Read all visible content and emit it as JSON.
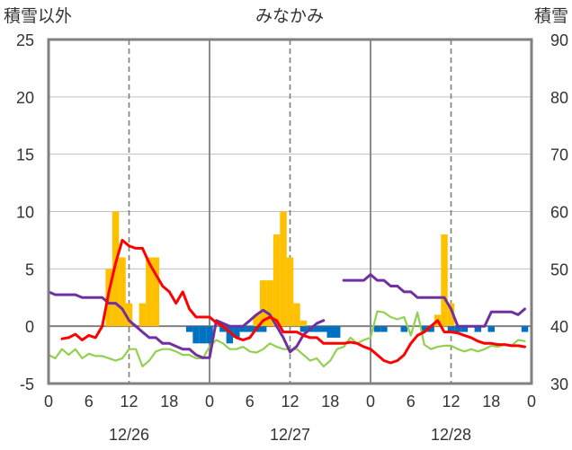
{
  "chart_data": {
    "type": "bar+line",
    "title": "みなかみ",
    "left_axis_label": "積雪以外",
    "right_axis_label": "積雪",
    "left_ylim": [
      -5,
      25
    ],
    "left_yticks": [
      -5,
      0,
      5,
      10,
      15,
      20,
      25
    ],
    "right_ylim": [
      30,
      90
    ],
    "right_yticks": [
      30,
      40,
      50,
      60,
      70,
      80,
      90
    ],
    "x_range_hours": [
      0,
      72
    ],
    "x_tick_labels": [
      "0",
      "6",
      "12",
      "18",
      "0",
      "6",
      "12",
      "18",
      "0",
      "6",
      "12",
      "18",
      "0"
    ],
    "date_labels": [
      "12/26",
      "12/27",
      "12/28"
    ],
    "grid": "horizontal lines; solid at day boundaries, dashed at noon",
    "colors": {
      "precip_bar": "#FFC000",
      "minus_bar": "#0070C0",
      "temperature": "#FF0000",
      "green_line": "#92D050",
      "snow_depth": "#7030A0"
    },
    "precip_bars": [
      [
        9,
        5
      ],
      [
        10,
        10
      ],
      [
        11,
        6
      ],
      [
        12,
        2
      ],
      [
        14,
        2
      ],
      [
        15,
        6
      ],
      [
        16,
        6
      ],
      [
        31,
        1
      ],
      [
        32,
        4
      ],
      [
        33,
        4
      ],
      [
        34,
        8
      ],
      [
        35,
        10
      ],
      [
        36,
        6
      ],
      [
        37,
        2
      ],
      [
        38,
        0.5
      ],
      [
        58,
        1
      ],
      [
        59,
        8
      ],
      [
        60,
        2
      ]
    ],
    "minus_bars": [
      [
        21,
        -0.5
      ],
      [
        22,
        -1.5
      ],
      [
        23,
        -1.5
      ],
      [
        24,
        -1.5
      ],
      [
        26,
        -0.5
      ],
      [
        27,
        -1.5
      ],
      [
        28,
        -1
      ],
      [
        29,
        -0.5
      ],
      [
        30,
        -0.5
      ],
      [
        31,
        -0.5
      ],
      [
        32,
        -0.5
      ],
      [
        38,
        -0.5
      ],
      [
        39,
        -0.5
      ],
      [
        40,
        -0.5
      ],
      [
        41,
        -0.5
      ],
      [
        42,
        -1
      ],
      [
        43,
        -1
      ],
      [
        49,
        -0.5
      ],
      [
        50,
        -0.5
      ],
      [
        53,
        -0.5
      ],
      [
        56,
        -0.5
      ],
      [
        57,
        -0.5
      ],
      [
        60,
        -0.5
      ],
      [
        61,
        -0.5
      ],
      [
        62,
        -0.5
      ],
      [
        64,
        -0.5
      ],
      [
        66,
        -0.5
      ],
      [
        71,
        -0.5
      ]
    ],
    "temperature": [
      [
        0,
        -1.2
      ],
      [
        2,
        -1.1
      ],
      [
        3,
        -1
      ],
      [
        4,
        -0.7
      ],
      [
        5,
        -1.2
      ],
      [
        6,
        -0.8
      ],
      [
        7,
        -1
      ],
      [
        8,
        0
      ],
      [
        9,
        3
      ],
      [
        10,
        5.5
      ],
      [
        11,
        7.5
      ],
      [
        12,
        7
      ],
      [
        13,
        6.8
      ],
      [
        14,
        6.8
      ],
      [
        15,
        5.5
      ],
      [
        16,
        4.5
      ],
      [
        17,
        3.5
      ],
      [
        18,
        3
      ],
      [
        19,
        2
      ],
      [
        20,
        3
      ],
      [
        21,
        1.5
      ],
      [
        22,
        0.8
      ],
      [
        23,
        0.8
      ],
      [
        24,
        0.8
      ],
      [
        25,
        0.3
      ],
      [
        26,
        0
      ],
      [
        27,
        -0.5
      ],
      [
        28,
        -1
      ],
      [
        29,
        -1.2
      ],
      [
        30,
        -1
      ],
      [
        31,
        -0.2
      ],
      [
        32,
        0.5
      ],
      [
        33,
        0.8
      ],
      [
        34,
        0.5
      ],
      [
        35,
        -0.5
      ],
      [
        36,
        -0.5
      ],
      [
        37,
        -0.5
      ],
      [
        38,
        -0.8
      ],
      [
        39,
        -1
      ],
      [
        40,
        -1
      ],
      [
        41,
        -1.5
      ],
      [
        42,
        -1.5
      ],
      [
        43,
        -1.5
      ],
      [
        44,
        -1.5
      ],
      [
        45,
        -1.4
      ],
      [
        46,
        -1.5
      ],
      [
        47,
        -1.8
      ],
      [
        48,
        -2
      ],
      [
        49,
        -2.5
      ],
      [
        50,
        -3
      ],
      [
        51,
        -3.2
      ],
      [
        52,
        -3
      ],
      [
        53,
        -2.5
      ],
      [
        54,
        -1.5
      ],
      [
        55,
        -0.8
      ],
      [
        56,
        -0.5
      ],
      [
        57,
        0
      ],
      [
        58,
        0.5
      ],
      [
        59,
        -0.5
      ],
      [
        60,
        -0.5
      ],
      [
        61,
        -0.6
      ],
      [
        62,
        -0.8
      ],
      [
        63,
        -1
      ],
      [
        64,
        -1.3
      ],
      [
        65,
        -1.5
      ],
      [
        66,
        -1.5
      ],
      [
        67,
        -1.6
      ],
      [
        68,
        -1.6
      ],
      [
        69,
        -1.7
      ],
      [
        70,
        -1.7
      ],
      [
        71,
        -1.8
      ]
    ],
    "green_line": [
      [
        0,
        -2.5
      ],
      [
        1,
        -2.8
      ],
      [
        2,
        -2
      ],
      [
        3,
        -2.5
      ],
      [
        4,
        -2
      ],
      [
        5,
        -2.8
      ],
      [
        6,
        -2.4
      ],
      [
        7,
        -2.6
      ],
      [
        8,
        -2.6
      ],
      [
        9,
        -2.8
      ],
      [
        10,
        -3
      ],
      [
        11,
        -2.8
      ],
      [
        12,
        -2
      ],
      [
        13,
        -2
      ],
      [
        14,
        -3.5
      ],
      [
        15,
        -3
      ],
      [
        16,
        -2.2
      ],
      [
        17,
        -2
      ],
      [
        18,
        -2
      ],
      [
        19,
        -2.2
      ],
      [
        20,
        -2.5
      ],
      [
        21,
        -2.5
      ],
      [
        22,
        -2.8
      ],
      [
        23,
        -2.8
      ],
      [
        24,
        -1.8
      ],
      [
        25,
        -1.2
      ],
      [
        26,
        -1.5
      ],
      [
        27,
        -2
      ],
      [
        28,
        -2
      ],
      [
        29,
        -1.8
      ],
      [
        30,
        -2.2
      ],
      [
        31,
        -2.3
      ],
      [
        32,
        -2
      ],
      [
        33,
        -1.5
      ],
      [
        34,
        -1.8
      ],
      [
        35,
        -2
      ],
      [
        36,
        -2
      ],
      [
        37,
        -2
      ],
      [
        38,
        -2.5
      ],
      [
        39,
        -3
      ],
      [
        40,
        -2.8
      ],
      [
        41,
        -3.5
      ],
      [
        42,
        -3
      ],
      [
        43,
        -2
      ],
      [
        44,
        -1.8
      ],
      [
        45,
        -1
      ],
      [
        46,
        -1.5
      ],
      [
        47,
        -1.2
      ],
      [
        48,
        -1
      ],
      [
        49,
        1.3
      ],
      [
        50,
        1.2
      ],
      [
        51,
        0.8
      ],
      [
        52,
        0.6
      ],
      [
        53,
        0.8
      ],
      [
        54,
        -0.8
      ],
      [
        55,
        1.2
      ],
      [
        56,
        -1.6
      ],
      [
        57,
        -2
      ],
      [
        58,
        -1.8
      ],
      [
        59,
        -1.7
      ],
      [
        60,
        -1.7
      ],
      [
        61,
        -2
      ],
      [
        62,
        -2.2
      ],
      [
        63,
        -2
      ],
      [
        64,
        -2.2
      ],
      [
        65,
        -2
      ],
      [
        66,
        -1.7
      ],
      [
        67,
        -1.8
      ],
      [
        68,
        -1.6
      ],
      [
        69,
        -1.7
      ],
      [
        70,
        -1.2
      ],
      [
        71,
        -1.3
      ]
    ],
    "snow_depth": [
      [
        0,
        46
      ],
      [
        1,
        45.5
      ],
      [
        2,
        45.5
      ],
      [
        3,
        45.5
      ],
      [
        4,
        45.5
      ],
      [
        5,
        45
      ],
      [
        6,
        45
      ],
      [
        7,
        45
      ],
      [
        8,
        45
      ],
      [
        9,
        44
      ],
      [
        10,
        44
      ],
      [
        11,
        43
      ],
      [
        12,
        41
      ],
      [
        13,
        40
      ],
      [
        14,
        39
      ],
      [
        15,
        38
      ],
      [
        16,
        38
      ],
      [
        17,
        37
      ],
      [
        18,
        37
      ],
      [
        19,
        36.5
      ],
      [
        20,
        36
      ],
      [
        21,
        36
      ],
      [
        22,
        35
      ],
      [
        23,
        34.5
      ],
      [
        24,
        34.5
      ],
      [
        25,
        41
      ],
      [
        26,
        40.5
      ],
      [
        27,
        40
      ],
      [
        28,
        40
      ],
      [
        29,
        40
      ],
      [
        30,
        41
      ],
      [
        31,
        42
      ],
      [
        32,
        42.8
      ],
      [
        33,
        42
      ],
      [
        34,
        40
      ],
      [
        35,
        38
      ],
      [
        36,
        35.5
      ],
      [
        37,
        36.5
      ],
      [
        38,
        38.5
      ],
      [
        39,
        39.5
      ],
      [
        40,
        40.5
      ],
      [
        41,
        41
      ],
      [
        44,
        48
      ],
      [
        45,
        48
      ],
      [
        46,
        48
      ],
      [
        47,
        48
      ],
      [
        48,
        49
      ],
      [
        49,
        48
      ],
      [
        50,
        48
      ],
      [
        51,
        47
      ],
      [
        52,
        47
      ],
      [
        53,
        46
      ],
      [
        54,
        46
      ],
      [
        55,
        45
      ],
      [
        56,
        45
      ],
      [
        57,
        45
      ],
      [
        58,
        45
      ],
      [
        59,
        45
      ],
      [
        60,
        43
      ],
      [
        61,
        40
      ],
      [
        62,
        40
      ],
      [
        63,
        40
      ],
      [
        64,
        40
      ],
      [
        65,
        40
      ],
      [
        66,
        42.5
      ],
      [
        67,
        42.5
      ],
      [
        68,
        42.5
      ],
      [
        69,
        42.5
      ],
      [
        70,
        42
      ],
      [
        71,
        43
      ]
    ]
  }
}
